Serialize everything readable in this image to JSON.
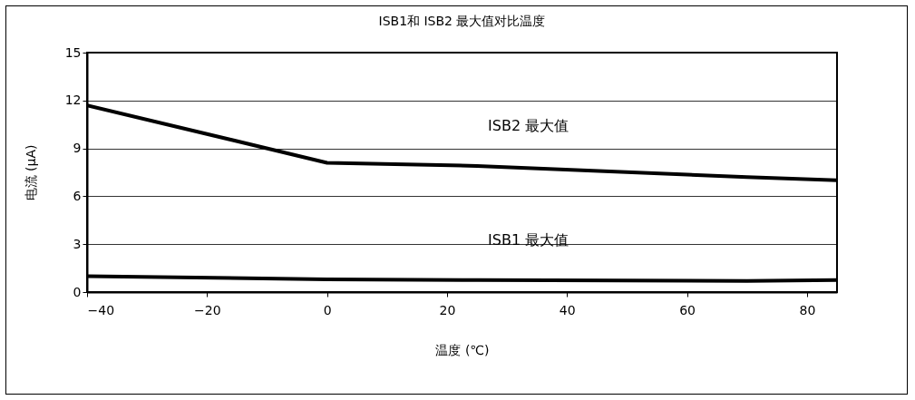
{
  "chart_data": {
    "type": "line",
    "title": "ISB1和 ISB2 最大值对比温度",
    "xlabel": "温度 (℃)",
    "ylabel": "电流 (µA)",
    "x": [
      -40,
      0,
      25,
      70,
      85
    ],
    "series": [
      {
        "name": "ISB2 最大值",
        "color": "#000000",
        "values": [
          11.7,
          8.1,
          7.9,
          7.2,
          7.0
        ]
      },
      {
        "name": "ISB1 最大值",
        "color": "#000000",
        "values": [
          1.0,
          0.8,
          0.75,
          0.7,
          0.75
        ]
      }
    ],
    "xlim": [
      -40,
      85
    ],
    "xticks": [
      -40,
      -20,
      0,
      20,
      40,
      60,
      80
    ],
    "ylim": [
      0,
      15
    ],
    "yticks": [
      0,
      3,
      6,
      9,
      12,
      15
    ],
    "grid": "y",
    "marker": "none",
    "line_style": "solid"
  }
}
